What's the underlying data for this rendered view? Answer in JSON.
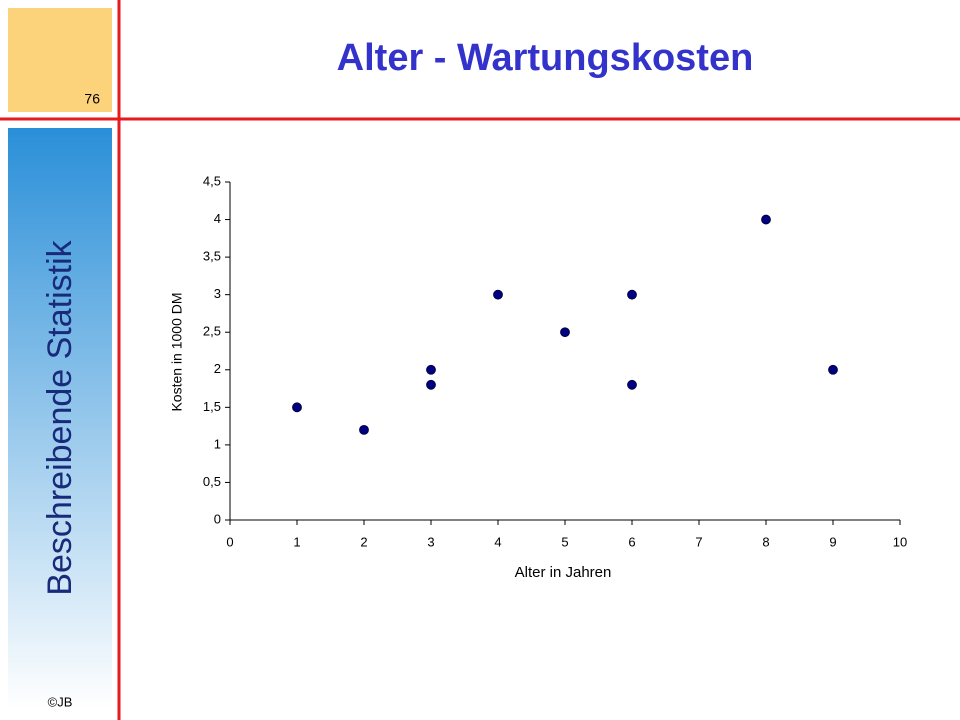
{
  "slide": {
    "page_number": "76",
    "side_title": "Beschreibende Statistik",
    "footer": "©JB"
  },
  "chart_data": {
    "type": "scatter",
    "title": "Alter - Wartungskosten",
    "x_label": "Alter in Jahren",
    "y_label": "Kosten in 1000 DM",
    "x": [
      1,
      2,
      3,
      3,
      4,
      5,
      6,
      6,
      8,
      9
    ],
    "values": [
      1.5,
      1.2,
      2,
      1.8,
      3,
      2.5,
      3,
      1.8,
      4,
      2
    ],
    "color": "#000080",
    "xlim": [
      0,
      10
    ],
    "xticks": [
      0,
      1,
      2,
      3,
      4,
      5,
      6,
      7,
      8,
      9,
      10
    ],
    "ylim": [
      0,
      4.5
    ],
    "yticks": [
      0,
      {
        "value": 0.5,
        "label": "0,5"
      },
      1,
      {
        "value": 1.5,
        "label": "1,5"
      },
      2,
      {
        "value": 2.5,
        "label": "2,5"
      },
      3,
      {
        "value": 3.5,
        "label": "3,5"
      },
      4,
      {
        "value": 4.5,
        "label": "4,5"
      }
    ],
    "grid": false
  }
}
